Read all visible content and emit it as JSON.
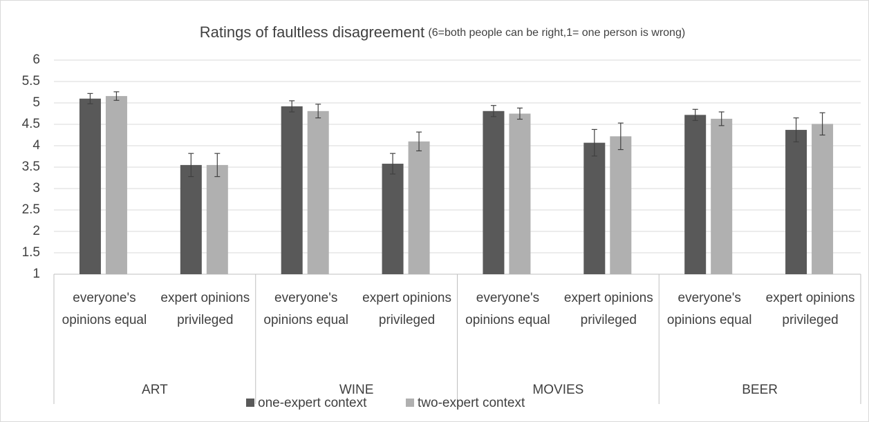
{
  "chart_data": {
    "type": "bar",
    "title": "Ratings of faultless disagreement",
    "subtitle": "(6=both people can be right,1= one person is wrong)",
    "categories": [
      "everyone's opinions equal",
      "expert opinions privileged",
      "everyone's opinions equal",
      "expert opinions privileged",
      "everyone's opinions equal",
      "expert opinions privileged",
      "everyone's opinions equal",
      "expert opinions privileged"
    ],
    "groups": [
      "ART",
      "WINE",
      "MOVIES",
      "BEER"
    ],
    "series": [
      {
        "name": "one-expert context",
        "color": "#595959",
        "values": [
          5.1,
          3.55,
          4.92,
          3.58,
          4.81,
          4.07,
          4.72,
          4.37
        ],
        "errors": [
          0.12,
          0.27,
          0.13,
          0.24,
          0.13,
          0.31,
          0.13,
          0.28
        ]
      },
      {
        "name": "two-expert context",
        "color": "#b0b0b0",
        "values": [
          5.16,
          3.55,
          4.81,
          4.1,
          4.75,
          4.22,
          4.63,
          4.51
        ],
        "errors": [
          0.1,
          0.27,
          0.16,
          0.22,
          0.13,
          0.31,
          0.16,
          0.26
        ]
      }
    ],
    "ylim": [
      1,
      6
    ],
    "yticks": [
      1,
      1.5,
      2,
      2.5,
      3,
      3.5,
      4,
      4.5,
      5,
      5.5,
      6
    ],
    "grid": true,
    "legend": "bottom"
  }
}
